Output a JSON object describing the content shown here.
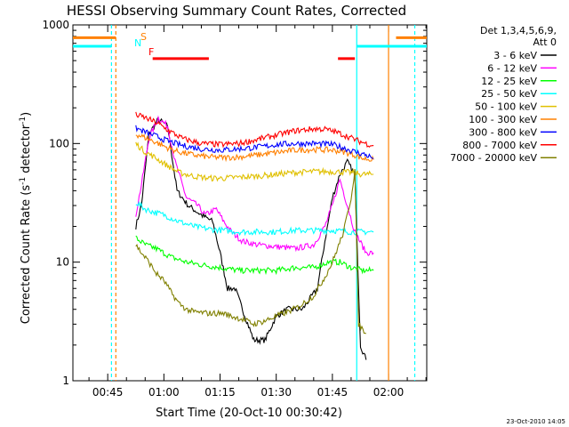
{
  "chart_data": {
    "type": "line",
    "title": "HESSI Observing Summary Count Rates, Corrected",
    "xlabel": "Start Time (20-Oct-10 00:30:42)",
    "ylabel": "Corrected Count Rate (s",
    "ylabel_sup1": "-1",
    "ylabel_mid": " detector",
    "ylabel_sup2": "-1",
    "ylabel_end": ")",
    "xlim": [
      "00:35:42",
      "02:10:12"
    ],
    "ylim": [
      1,
      1000
    ],
    "yscale": "log",
    "x_ticks": [
      "00:45",
      "01:00",
      "01:15",
      "01:30",
      "01:45",
      "02:00"
    ],
    "y_ticks": [
      "1",
      "10",
      "100",
      "1000"
    ],
    "grid": false,
    "legend_position": "right",
    "legend_header": [
      "Det 1,3,4,5,6,9,",
      "Att 0"
    ],
    "stamp": "23-Oct-2010 14:05",
    "state_flags": {
      "S": {
        "label": "S",
        "color": "#ff8000"
      },
      "N": {
        "label": "N",
        "color": "#00ffff"
      },
      "F": {
        "label": "F",
        "color": "#ff0000"
      }
    },
    "state_bars": [
      {
        "flag": "S",
        "color": "#ff8000",
        "y": 780,
        "x_ranges": [
          [
            "00:35:42",
            "00:47:10"
          ],
          [
            "02:02:00",
            "02:10:12"
          ]
        ]
      },
      {
        "flag": "N",
        "color": "#00ffff",
        "y": 660,
        "x_ranges": [
          [
            "00:35:42",
            "00:46:00"
          ],
          [
            "01:51:30",
            "02:10:12"
          ]
        ]
      },
      {
        "flag": "F",
        "color": "#ff0000",
        "y": 520,
        "x_ranges": [
          [
            "00:57:00",
            "01:12:00"
          ],
          [
            "01:46:30",
            "01:51:00"
          ]
        ]
      }
    ],
    "markers": [
      {
        "x": "00:46:00",
        "color": "#00ffff",
        "style": "dashed"
      },
      {
        "x": "00:47:10",
        "color": "#ff8000",
        "style": "dashed"
      },
      {
        "x": "01:51:30",
        "color": "#00ffff",
        "style": "solid"
      },
      {
        "x": "02:00:00",
        "color": "#ff8000",
        "style": "solid"
      },
      {
        "x": "02:07:00",
        "color": "#00ffff",
        "style": "dashed"
      }
    ],
    "series": [
      {
        "name": "3 - 6 keV",
        "color": "#000000",
        "points": [
          [
            "00:52:30",
            20
          ],
          [
            "00:54:00",
            30
          ],
          [
            "00:56:00",
            120
          ],
          [
            "00:58:30",
            160
          ],
          [
            "01:01:00",
            140
          ],
          [
            "01:03:30",
            40
          ],
          [
            "01:06:30",
            30
          ],
          [
            "01:10:00",
            25
          ],
          [
            "01:13:00",
            22
          ],
          [
            "01:15:00",
            12
          ],
          [
            "01:17:00",
            6
          ],
          [
            "01:19:00",
            6
          ],
          [
            "01:21:00",
            4
          ],
          [
            "01:24:00",
            2.2
          ],
          [
            "01:27:00",
            2.2
          ],
          [
            "01:30:00",
            3.5
          ],
          [
            "01:33:00",
            4
          ],
          [
            "01:37:00",
            4
          ],
          [
            "01:41:00",
            6
          ],
          [
            "01:43:00",
            15
          ],
          [
            "01:45:00",
            35
          ],
          [
            "01:47:00",
            55
          ],
          [
            "01:49:00",
            70
          ],
          [
            "01:51:00",
            55
          ],
          [
            "01:52:30",
            2
          ],
          [
            "01:54:00",
            1.5
          ]
        ]
      },
      {
        "name": "6 - 12 keV",
        "color": "#ff00ff",
        "points": [
          [
            "00:52:30",
            25
          ],
          [
            "00:54:00",
            45
          ],
          [
            "00:56:00",
            110
          ],
          [
            "00:58:30",
            165
          ],
          [
            "01:01:00",
            140
          ],
          [
            "01:03:00",
            70
          ],
          [
            "01:06:00",
            35
          ],
          [
            "01:09:00",
            30
          ],
          [
            "01:11:00",
            25
          ],
          [
            "01:14:00",
            28
          ],
          [
            "01:16:00",
            22
          ],
          [
            "01:18:00",
            18
          ],
          [
            "01:21:00",
            15
          ],
          [
            "01:25:00",
            14
          ],
          [
            "01:30:00",
            13.5
          ],
          [
            "01:35:00",
            13
          ],
          [
            "01:40:00",
            14
          ],
          [
            "01:43:00",
            20
          ],
          [
            "01:45:00",
            30
          ],
          [
            "01:47:00",
            50
          ],
          [
            "01:49:00",
            30
          ],
          [
            "01:51:00",
            18
          ],
          [
            "01:54:00",
            12
          ],
          [
            "01:56:00",
            12
          ]
        ]
      },
      {
        "name": "12 - 25 keV",
        "color": "#00ff00",
        "points": [
          [
            "00:52:30",
            16
          ],
          [
            "00:55:00",
            14
          ],
          [
            "00:58:00",
            13
          ],
          [
            "01:02:00",
            11
          ],
          [
            "01:06:00",
            10
          ],
          [
            "01:10:00",
            9.5
          ],
          [
            "01:15:00",
            9
          ],
          [
            "01:20:00",
            8.5
          ],
          [
            "01:25:00",
            8.5
          ],
          [
            "01:30:00",
            8.5
          ],
          [
            "01:35:00",
            9
          ],
          [
            "01:40:00",
            9
          ],
          [
            "01:44:00",
            10
          ],
          [
            "01:47:00",
            10
          ],
          [
            "01:50:00",
            9
          ],
          [
            "01:53:00",
            8.5
          ],
          [
            "01:56:00",
            8.5
          ]
        ]
      },
      {
        "name": "25 - 50 keV",
        "color": "#00ffff",
        "points": [
          [
            "00:52:30",
            32
          ],
          [
            "00:55:00",
            28
          ],
          [
            "00:58:00",
            26
          ],
          [
            "01:00:00",
            25
          ],
          [
            "01:04:00",
            22
          ],
          [
            "01:08:00",
            20
          ],
          [
            "01:12:00",
            19
          ],
          [
            "01:16:00",
            18.5
          ],
          [
            "01:20:00",
            18
          ],
          [
            "01:25:00",
            18
          ],
          [
            "01:30:00",
            18
          ],
          [
            "01:35:00",
            18.5
          ],
          [
            "01:40:00",
            18.5
          ],
          [
            "01:45:00",
            18.5
          ],
          [
            "01:50:00",
            18
          ],
          [
            "01:53:00",
            18
          ],
          [
            "01:56:00",
            18
          ]
        ]
      },
      {
        "name": "50 - 100 keV",
        "color": "#e0c000",
        "points": [
          [
            "00:52:30",
            100
          ],
          [
            "00:55:00",
            85
          ],
          [
            "00:58:00",
            75
          ],
          [
            "01:01:00",
            65
          ],
          [
            "01:04:00",
            57
          ],
          [
            "01:08:00",
            53
          ],
          [
            "01:12:00",
            51
          ],
          [
            "01:16:00",
            51
          ],
          [
            "01:20:00",
            52
          ],
          [
            "01:25:00",
            53
          ],
          [
            "01:30:00",
            55
          ],
          [
            "01:35:00",
            57
          ],
          [
            "01:40:00",
            58
          ],
          [
            "01:45:00",
            58
          ],
          [
            "01:50:00",
            57
          ],
          [
            "01:53:00",
            55
          ],
          [
            "01:56:00",
            55
          ]
        ]
      },
      {
        "name": "100 - 300 keV",
        "color": "#ff8000",
        "points": [
          [
            "00:52:30",
            120
          ],
          [
            "00:55:00",
            112
          ],
          [
            "00:58:00",
            102
          ],
          [
            "01:01:00",
            92
          ],
          [
            "01:04:00",
            85
          ],
          [
            "01:08:00",
            80
          ],
          [
            "01:12:00",
            77
          ],
          [
            "01:16:00",
            76
          ],
          [
            "01:20:00",
            77
          ],
          [
            "01:25:00",
            80
          ],
          [
            "01:30:00",
            84
          ],
          [
            "01:35:00",
            88
          ],
          [
            "01:40:00",
            89
          ],
          [
            "01:45:00",
            88
          ],
          [
            "01:48:00",
            85
          ],
          [
            "01:51:00",
            80
          ],
          [
            "01:53:00",
            75
          ],
          [
            "01:56:00",
            73
          ]
        ]
      },
      {
        "name": "300 - 800 keV",
        "color": "#0000ff",
        "points": [
          [
            "00:52:30",
            135
          ],
          [
            "00:55:00",
            125
          ],
          [
            "00:58:00",
            115
          ],
          [
            "01:01:00",
            105
          ],
          [
            "01:05:00",
            96
          ],
          [
            "01:10:00",
            90
          ],
          [
            "01:15:00",
            88
          ],
          [
            "01:20:00",
            90
          ],
          [
            "01:25:00",
            93
          ],
          [
            "01:30:00",
            98
          ],
          [
            "01:35:00",
            100
          ],
          [
            "01:40:00",
            100
          ],
          [
            "01:45:00",
            98
          ],
          [
            "01:48:00",
            92
          ],
          [
            "01:51:00",
            85
          ],
          [
            "01:54:00",
            80
          ],
          [
            "01:56:00",
            75
          ]
        ]
      },
      {
        "name": "800 - 7000 keV",
        "color": "#ff0000",
        "points": [
          [
            "00:52:30",
            175
          ],
          [
            "00:55:00",
            165
          ],
          [
            "00:58:00",
            150
          ],
          [
            "01:01:00",
            130
          ],
          [
            "01:05:00",
            110
          ],
          [
            "01:10:00",
            100
          ],
          [
            "01:15:00",
            98
          ],
          [
            "01:20:00",
            100
          ],
          [
            "01:25:00",
            108
          ],
          [
            "01:30:00",
            118
          ],
          [
            "01:35:00",
            128
          ],
          [
            "01:40:00",
            133
          ],
          [
            "01:43:00",
            132
          ],
          [
            "01:46:00",
            125
          ],
          [
            "01:49:00",
            115
          ],
          [
            "01:52:00",
            105
          ],
          [
            "01:54:00",
            100
          ],
          [
            "01:56:00",
            96
          ]
        ]
      },
      {
        "name": "7000 - 20000 keV",
        "color": "#808000",
        "points": [
          [
            "00:52:30",
            14
          ],
          [
            "00:54:00",
            12
          ],
          [
            "00:56:00",
            10
          ],
          [
            "00:58:00",
            8
          ],
          [
            "01:00:00",
            7
          ],
          [
            "01:02:00",
            5.5
          ],
          [
            "01:04:00",
            4.5
          ],
          [
            "01:06:00",
            4
          ],
          [
            "01:08:00",
            3.8
          ],
          [
            "01:12:00",
            3.7
          ],
          [
            "01:16:00",
            3.7
          ],
          [
            "01:18:00",
            3.5
          ],
          [
            "01:21:00",
            3.3
          ],
          [
            "01:24:00",
            3
          ],
          [
            "01:27:00",
            3.2
          ],
          [
            "01:30:00",
            3.5
          ],
          [
            "01:33:00",
            3.8
          ],
          [
            "01:36:00",
            4.2
          ],
          [
            "01:40:00",
            5.2
          ],
          [
            "01:43:00",
            7.5
          ],
          [
            "01:45:00",
            10
          ],
          [
            "01:48:00",
            18
          ],
          [
            "01:50:00",
            35
          ],
          [
            "01:51:00",
            60
          ],
          [
            "01:52:00",
            3
          ],
          [
            "01:54:00",
            2.5
          ]
        ]
      }
    ]
  }
}
